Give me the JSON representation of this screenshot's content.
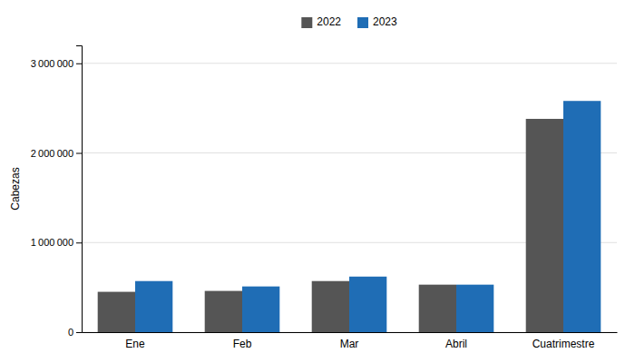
{
  "chart_data": {
    "type": "bar",
    "categories": [
      "Ene",
      "Feb",
      "Mar",
      "Abril",
      "Cuatrimestre"
    ],
    "series": [
      {
        "name": "2022",
        "color": "#555555",
        "values": [
          450000,
          460000,
          570000,
          530000,
          2380000
        ]
      },
      {
        "name": "2023",
        "color": "#1f6db5",
        "values": [
          570000,
          510000,
          620000,
          530000,
          2580000
        ]
      }
    ],
    "ylabel": "Cabezas",
    "ylim": [
      0,
      3200000
    ],
    "yticks": [
      0,
      {
        "value": 1000000,
        "label": "1 000 000"
      },
      {
        "value": 2000000,
        "label": "2 000 000"
      },
      {
        "value": 3000000,
        "label": "3 000 000"
      }
    ],
    "grid": true,
    "legend": "top"
  }
}
